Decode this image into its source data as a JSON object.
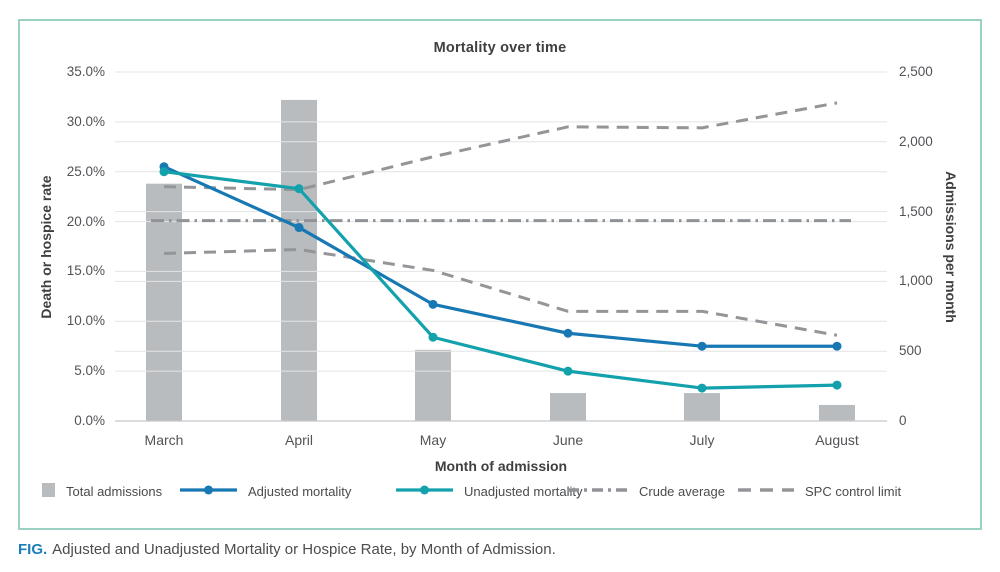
{
  "figure_panel": {
    "border_color": "#9bd1c2",
    "background": "#ffffff"
  },
  "chart_data": {
    "type": "combo (bar + line, dual axis)",
    "title": "Mortality over time",
    "xlabel": "Month of admission",
    "ylabel_left": "Death or hospice rate",
    "ylabel_right": "Admissions per month",
    "categories": [
      "March",
      "April",
      "May",
      "June",
      "July",
      "August"
    ],
    "y_left": {
      "min": 0,
      "max": 35,
      "step": 5,
      "unit": "%",
      "ticks": [
        "0.0%",
        "5.0%",
        "10.0%",
        "15.0%",
        "20.0%",
        "25.0%",
        "30.0%",
        "35.0%"
      ]
    },
    "y_right": {
      "min": 0,
      "max": 2500,
      "step": 500,
      "ticks": [
        "0",
        "500",
        "1,000",
        "1,500",
        "2,000",
        "2,500"
      ]
    },
    "grid": true,
    "legend_position": "bottom",
    "bars": {
      "name": "Total admissions",
      "axis": "right",
      "color": "#b9bcbe",
      "values": [
        1700,
        2300,
        510,
        200,
        200,
        115
      ]
    },
    "series": [
      {
        "name": "Adjusted mortality",
        "axis": "left",
        "color": "#1778b3",
        "dash": "solid",
        "markers": true,
        "values": [
          25.5,
          19.4,
          11.7,
          8.8,
          7.5,
          7.5
        ]
      },
      {
        "name": "Unadjusted mortality",
        "axis": "left",
        "color": "#13a1ac",
        "dash": "solid",
        "markers": true,
        "values": [
          25.0,
          23.3,
          8.4,
          5.0,
          3.3,
          3.6
        ]
      },
      {
        "name": "Crude average",
        "axis": "left",
        "color": "#8f9296",
        "dash": "dashdot",
        "markers": false,
        "extend_ends": true,
        "values": [
          20.1,
          20.1,
          20.1,
          20.1,
          20.1,
          20.1
        ]
      },
      {
        "name": "SPC control limit (upper)",
        "axis": "left",
        "color": "#939598",
        "dash": "dash",
        "markers": false,
        "values": [
          23.5,
          23.2,
          26.5,
          29.5,
          29.4,
          31.9
        ]
      },
      {
        "name": "SPC control limit (lower)",
        "axis": "left",
        "color": "#939598",
        "dash": "dash",
        "markers": false,
        "values": [
          16.8,
          17.2,
          15.1,
          11.0,
          11.0,
          8.6
        ]
      }
    ],
    "legend": [
      {
        "label": "Total admissions",
        "swatch": "bar",
        "color": "#b9bcbe"
      },
      {
        "label": "Adjusted mortality",
        "swatch": "line-dot",
        "color": "#1778b3"
      },
      {
        "label": "Unadjusted mortality",
        "swatch": "line-dot",
        "color": "#13a1ac"
      },
      {
        "label": "Crude average",
        "swatch": "dashdot",
        "color": "#8f9296"
      },
      {
        "label": "SPC control limit",
        "swatch": "dash",
        "color": "#939598"
      }
    ],
    "colors": {
      "grid": "#e3e4e5",
      "axis_line": "#c6c8ca",
      "tick_text": "#515357",
      "title_text": "#3e3f41"
    }
  },
  "caption": {
    "label": "FIG.",
    "text": "Adjusted and Unadjusted Mortality or Hospice Rate, by Month of Admission.",
    "label_color": "#1b7eb9"
  }
}
